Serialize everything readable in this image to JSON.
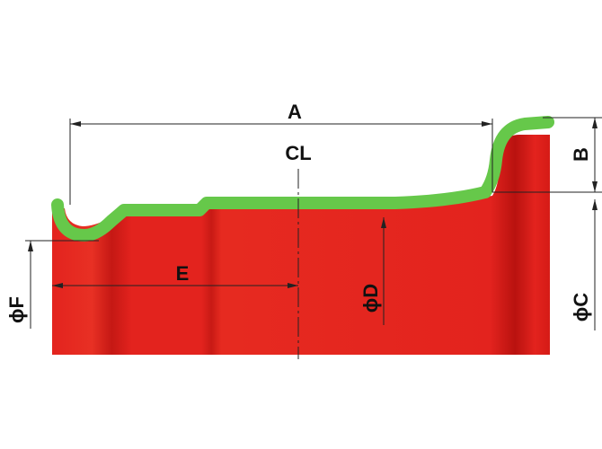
{
  "labels": {
    "A": "A",
    "B": "B",
    "CL": "CL",
    "C": "ϕC",
    "D": "ϕD",
    "E": "E",
    "F": "ϕF"
  },
  "colors": {
    "body": "#E3231E",
    "body_shade": "#B9120F",
    "profile": "#66C84A",
    "line": "#222222",
    "background": "#FFFFFF"
  }
}
